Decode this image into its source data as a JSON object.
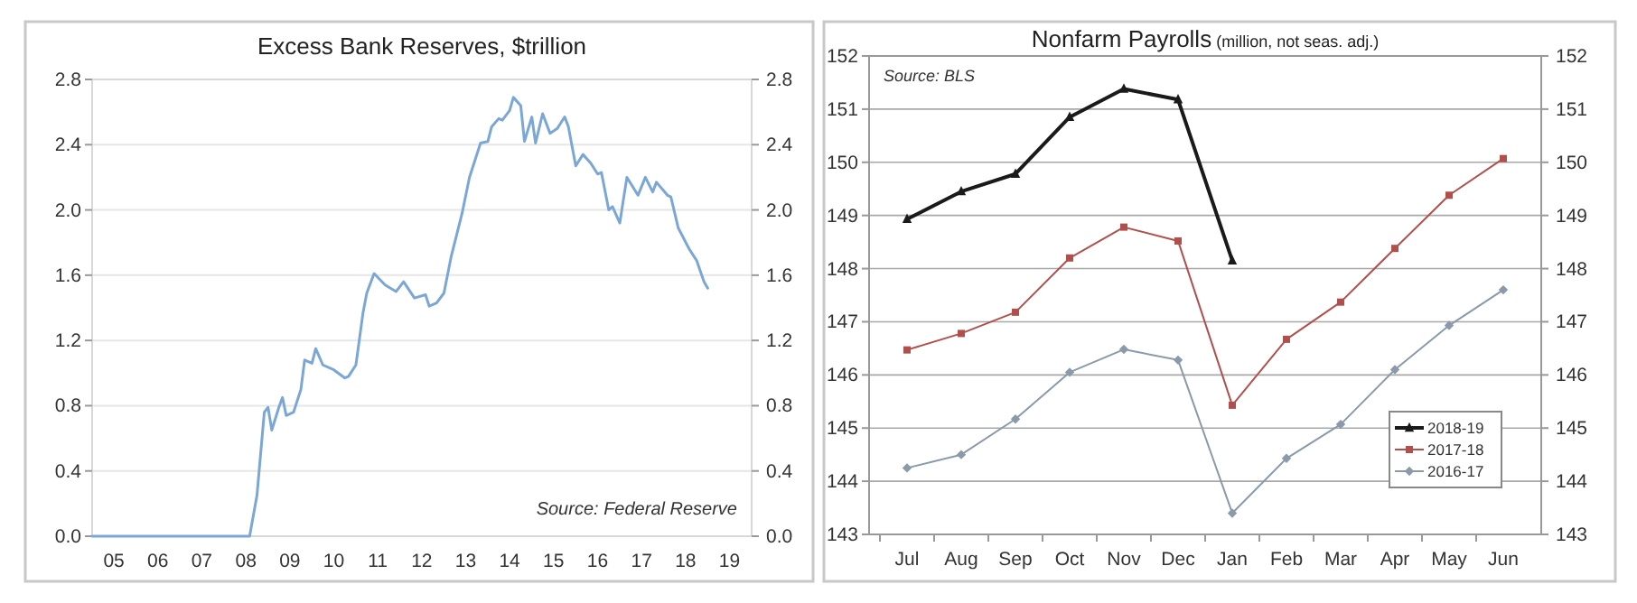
{
  "chart_data": [
    {
      "type": "line",
      "title": "Excess Bank Reserves, $trillion",
      "annotations": [
        "Source: Federal Reserve"
      ],
      "x": [
        "2005-01",
        "2008-08",
        "2008-10",
        "2008-12",
        "2009-01",
        "2009-02",
        "2009-04",
        "2009-05",
        "2009-06",
        "2009-08",
        "2009-10",
        "2009-11",
        "2010-01",
        "2010-02",
        "2010-04",
        "2010-07",
        "2010-10",
        "2010-11",
        "2011-01",
        "2011-03",
        "2011-04",
        "2011-06",
        "2011-09",
        "2011-12",
        "2012-02",
        "2012-05",
        "2012-08",
        "2012-09",
        "2012-11",
        "2013-01",
        "2013-03",
        "2013-06",
        "2013-08",
        "2013-11",
        "2014-01",
        "2014-02",
        "2014-04",
        "2014-05",
        "2014-07",
        "2014-08",
        "2014-10",
        "2014-11",
        "2015-01",
        "2015-02",
        "2015-04",
        "2015-06",
        "2015-08",
        "2015-10",
        "2015-11",
        "2016-01",
        "2016-03",
        "2016-05",
        "2016-07",
        "2016-08",
        "2016-10",
        "2016-11",
        "2017-01",
        "2017-02",
        "2017-03",
        "2017-06",
        "2017-08",
        "2017-10",
        "2017-11",
        "2018-02",
        "2018-03",
        "2018-05",
        "2018-08",
        "2018-10",
        "2018-12",
        "2019-01"
      ],
      "series": [
        {
          "color": "#7ba7d6",
          "values": [
            0,
            0,
            0.25,
            0.76,
            0.79,
            0.65,
            0.79,
            0.85,
            0.74,
            0.76,
            0.9,
            1.08,
            1.06,
            1.15,
            1.05,
            1.02,
            0.97,
            0.98,
            1.05,
            1.37,
            1.49,
            1.61,
            1.54,
            1.5,
            1.56,
            1.46,
            1.48,
            1.41,
            1.43,
            1.49,
            1.71,
            1.98,
            2.2,
            2.41,
            2.42,
            2.51,
            2.56,
            2.55,
            2.61,
            2.69,
            2.64,
            2.42,
            2.57,
            2.41,
            2.59,
            2.47,
            2.5,
            2.57,
            2.51,
            2.27,
            2.34,
            2.29,
            2.22,
            2.23,
            2.0,
            2.02,
            1.92,
            2.07,
            2.2,
            2.09,
            2.2,
            2.11,
            2.17,
            2.09,
            2.08,
            1.89,
            1.76,
            1.69,
            1.56,
            1.52
          ]
        }
      ],
      "xlim": [
        "2005-01",
        "2020-01"
      ],
      "xticks": [
        {
          "value": "2005-07",
          "label": "05"
        },
        {
          "value": "2006-07",
          "label": "06"
        },
        {
          "value": "2007-07",
          "label": "07"
        },
        {
          "value": "2008-07",
          "label": "08"
        },
        {
          "value": "2009-07",
          "label": "09"
        },
        {
          "value": "2010-07",
          "label": "10"
        },
        {
          "value": "2011-07",
          "label": "11"
        },
        {
          "value": "2012-07",
          "label": "12"
        },
        {
          "value": "2013-07",
          "label": "13"
        },
        {
          "value": "2014-07",
          "label": "14"
        },
        {
          "value": "2015-07",
          "label": "15"
        },
        {
          "value": "2016-07",
          "label": "16"
        },
        {
          "value": "2017-07",
          "label": "17"
        },
        {
          "value": "2018-07",
          "label": "18"
        },
        {
          "value": "2019-07",
          "label": "19"
        }
      ],
      "ylim": [
        0,
        2.8
      ],
      "yticks": [
        {
          "value": 0,
          "label": "0.0"
        },
        {
          "value": 0.4,
          "label": "0.4"
        },
        {
          "value": 0.8,
          "label": "0.8"
        },
        {
          "value": 1.2,
          "label": "1.2"
        },
        {
          "value": 1.6,
          "label": "1.6"
        },
        {
          "value": 2.0,
          "label": "2.0"
        },
        {
          "value": 2.4,
          "label": "2.4"
        },
        {
          "value": 2.8,
          "label": "2.8"
        }
      ],
      "y2lim": [
        0,
        2.8
      ],
      "y2ticks": [
        {
          "value": 0,
          "label": "0.0"
        },
        {
          "value": 0.4,
          "label": "0.4"
        },
        {
          "value": 0.8,
          "label": "0.8"
        },
        {
          "value": 1.2,
          "label": "1.2"
        },
        {
          "value": 1.6,
          "label": "1.6"
        },
        {
          "value": 2.0,
          "label": "2.0"
        },
        {
          "value": 2.4,
          "label": "2.4"
        },
        {
          "value": 2.8,
          "label": "2.8"
        }
      ],
      "grid": "y",
      "legend": false
    },
    {
      "type": "line",
      "title": "Nonfarm Payrolls",
      "subtitle": "(million, not seas. adj.)",
      "annotations": [
        "Source: BLS"
      ],
      "categories": [
        "Jul",
        "Aug",
        "Sep",
        "Oct",
        "Nov",
        "Dec",
        "Jan",
        "Feb",
        "Mar",
        "Apr",
        "May",
        "Jun"
      ],
      "series": [
        {
          "name": "2018-19",
          "color": "#1a1a1a",
          "marker": "triangle",
          "values": [
            148.93,
            149.45,
            149.78,
            150.85,
            151.38,
            151.18,
            148.15,
            null,
            null,
            null,
            null,
            null
          ]
        },
        {
          "name": "2017-18",
          "color": "#b0504c",
          "marker": "square",
          "values": [
            146.47,
            146.78,
            147.18,
            148.2,
            148.78,
            148.52,
            145.43,
            146.67,
            147.37,
            148.38,
            149.38,
            150.07
          ]
        },
        {
          "name": "2016-17",
          "color": "#8a9aaa",
          "marker": "diamond",
          "values": [
            144.25,
            144.5,
            145.17,
            146.05,
            146.48,
            146.28,
            143.4,
            144.43,
            145.07,
            146.1,
            146.93,
            147.6
          ]
        }
      ],
      "ylim": [
        143,
        152
      ],
      "yticks": [
        143,
        144,
        145,
        146,
        147,
        148,
        149,
        150,
        151,
        152
      ],
      "y2lim": [
        143,
        152
      ],
      "y2ticks": [
        143,
        144,
        145,
        146,
        147,
        148,
        149,
        150,
        151,
        152
      ],
      "grid": "y",
      "legend": "bottom right"
    }
  ]
}
